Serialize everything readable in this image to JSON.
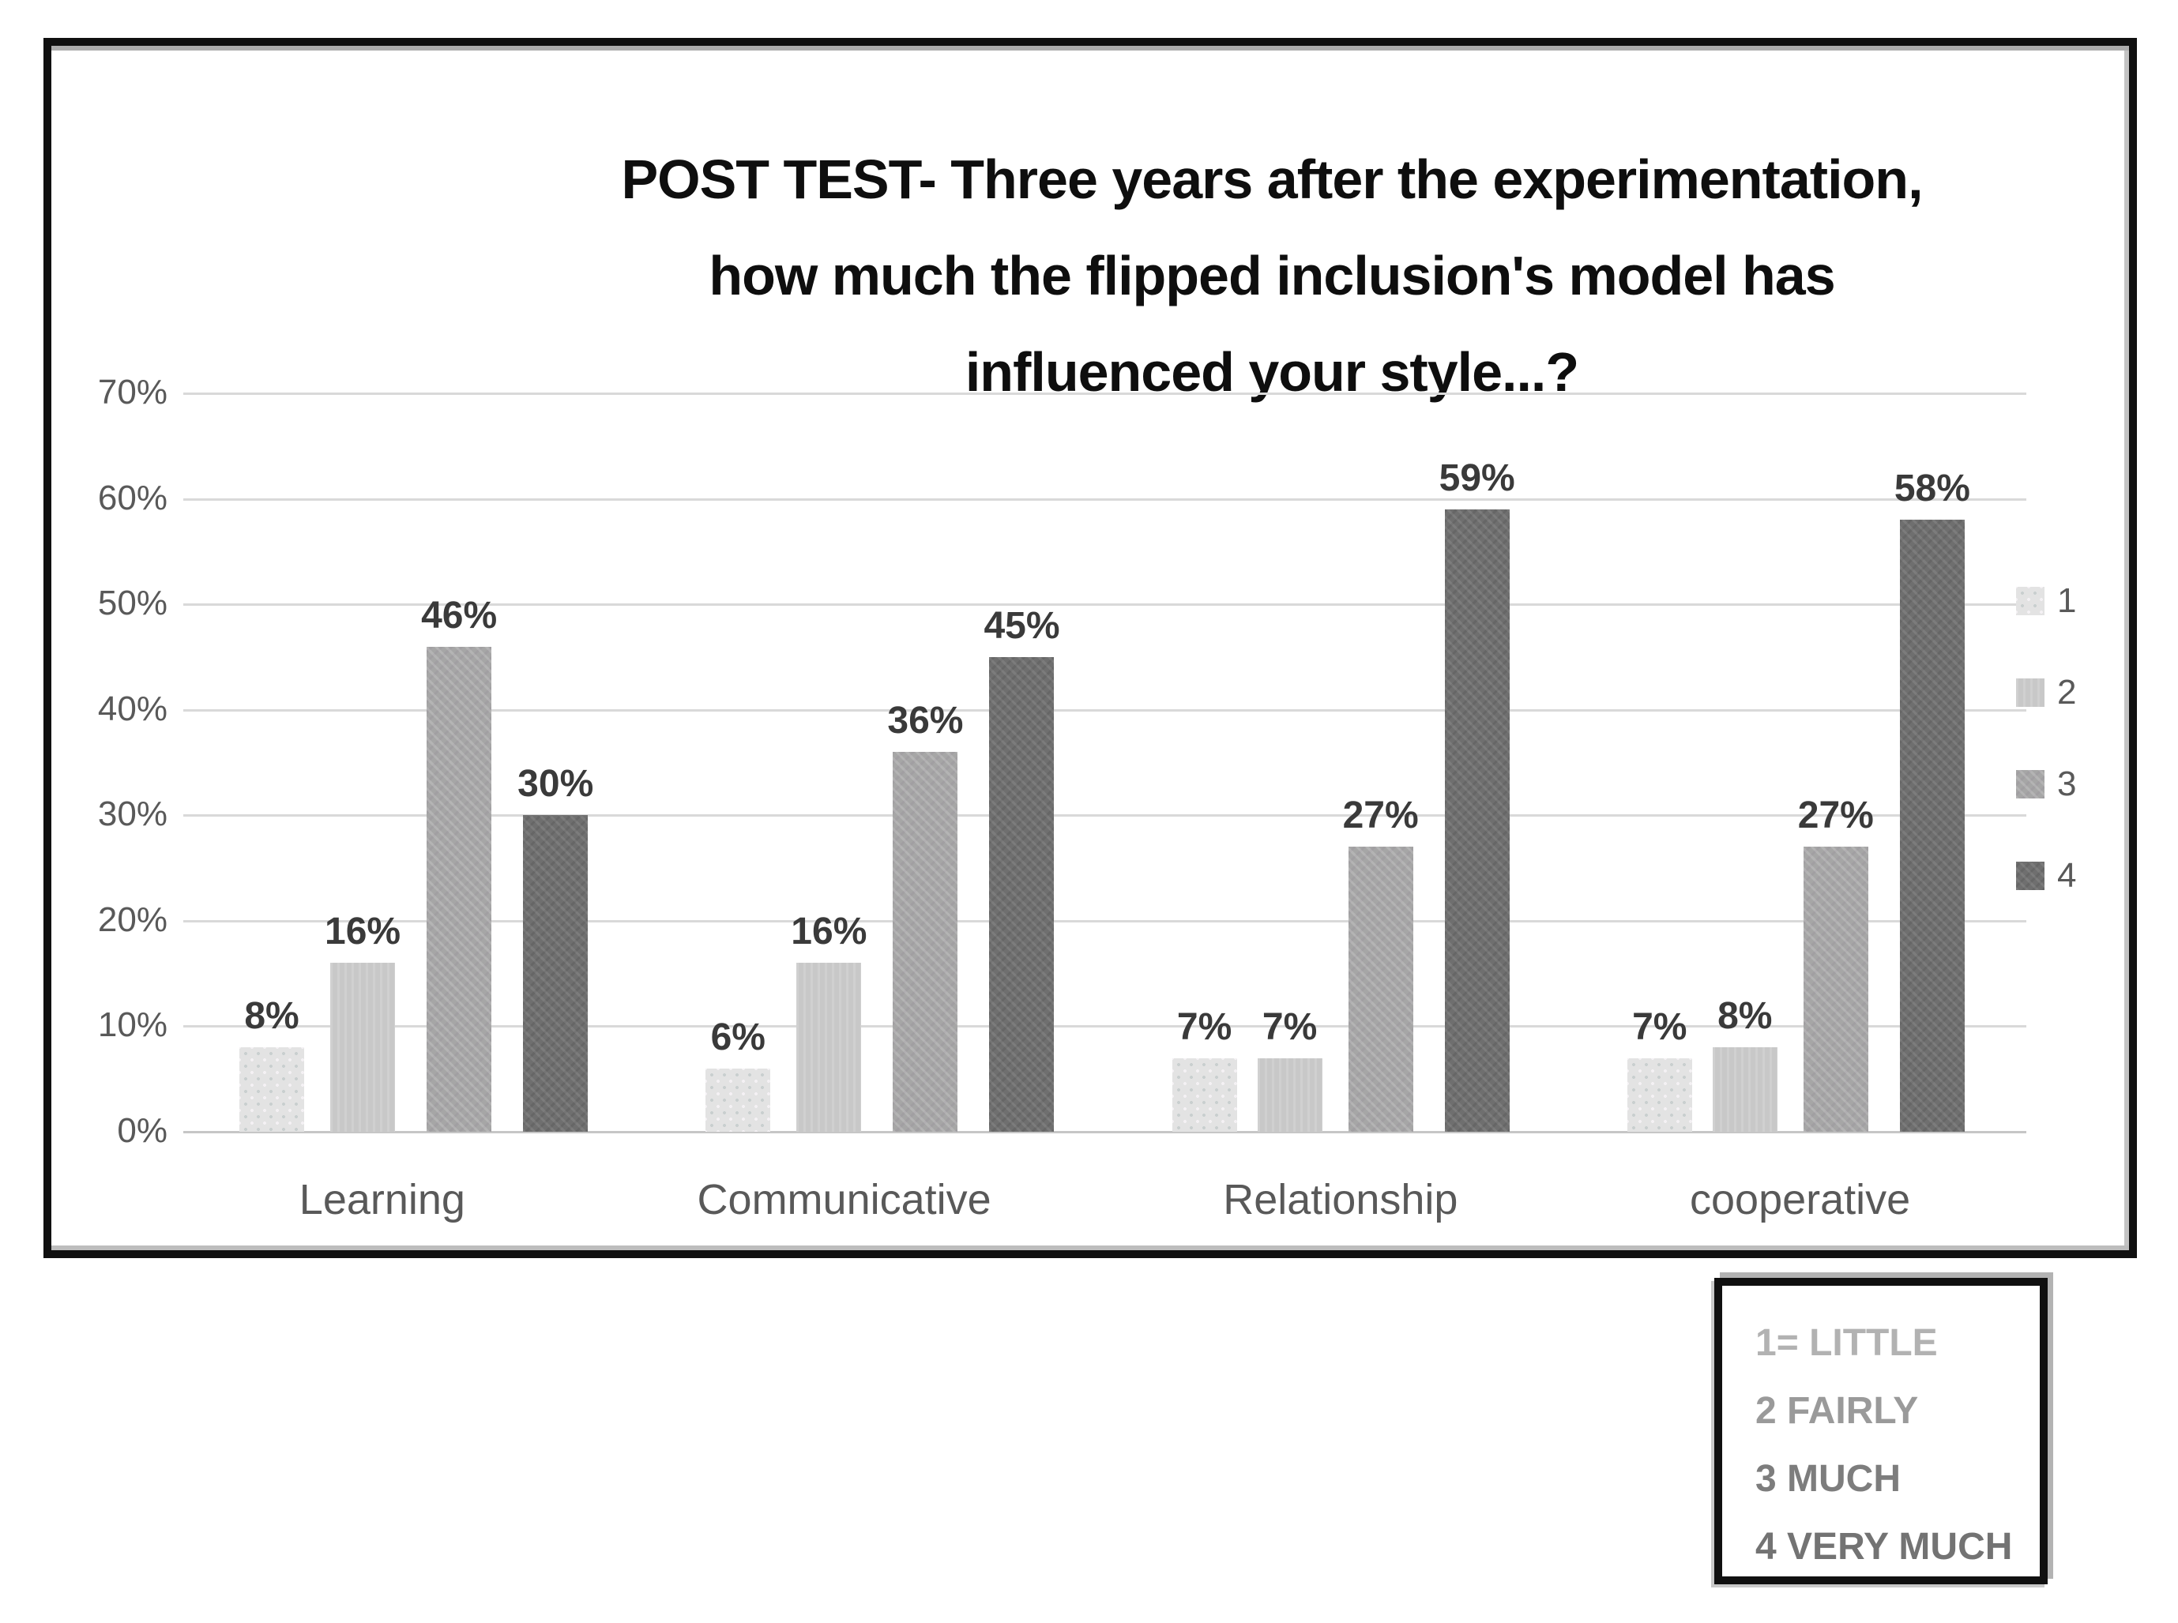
{
  "chart_data": {
    "type": "bar",
    "title": "POST TEST- Three years after the experimentation,\nhow much the flipped inclusion's model has\ninfluenced your style...?",
    "categories": [
      "Learning",
      "Communicative",
      "Relationship",
      "cooperative"
    ],
    "series": [
      {
        "name": "1",
        "color": "#e3e3e3",
        "values": [
          8,
          6,
          7,
          7
        ]
      },
      {
        "name": "2",
        "color": "#c8c8c8",
        "values": [
          16,
          16,
          7,
          8
        ]
      },
      {
        "name": "3",
        "color": "#a6a6a6",
        "values": [
          46,
          36,
          27,
          27
        ]
      },
      {
        "name": "4",
        "color": "#6f6f6f",
        "values": [
          30,
          45,
          59,
          58
        ]
      }
    ],
    "data_label_suffix": "%",
    "ylim": [
      0,
      70
    ],
    "yticks": [
      "0%",
      "10%",
      "20%",
      "30%",
      "40%",
      "50%",
      "60%",
      "70%"
    ],
    "grid": true,
    "legend_position": "right",
    "legend_labels": [
      "1",
      "2",
      "3",
      "4"
    ]
  },
  "rating_key": {
    "items": [
      {
        "label": "1= LITTLE",
        "color": "#b2b2b2"
      },
      {
        "label": "2 FAIRLY",
        "color": "#9a9a9a"
      },
      {
        "label": "3 MUCH",
        "color": "#7d7d7d"
      },
      {
        "label": "4 VERY MUCH",
        "color": "#737373"
      }
    ]
  },
  "colors": {
    "gridline": "#d9d9d9",
    "axis_text": "#595959",
    "bar_label": "#3a3a3a",
    "title_text": "#0e0e0e",
    "frame_border": "#101010"
  }
}
